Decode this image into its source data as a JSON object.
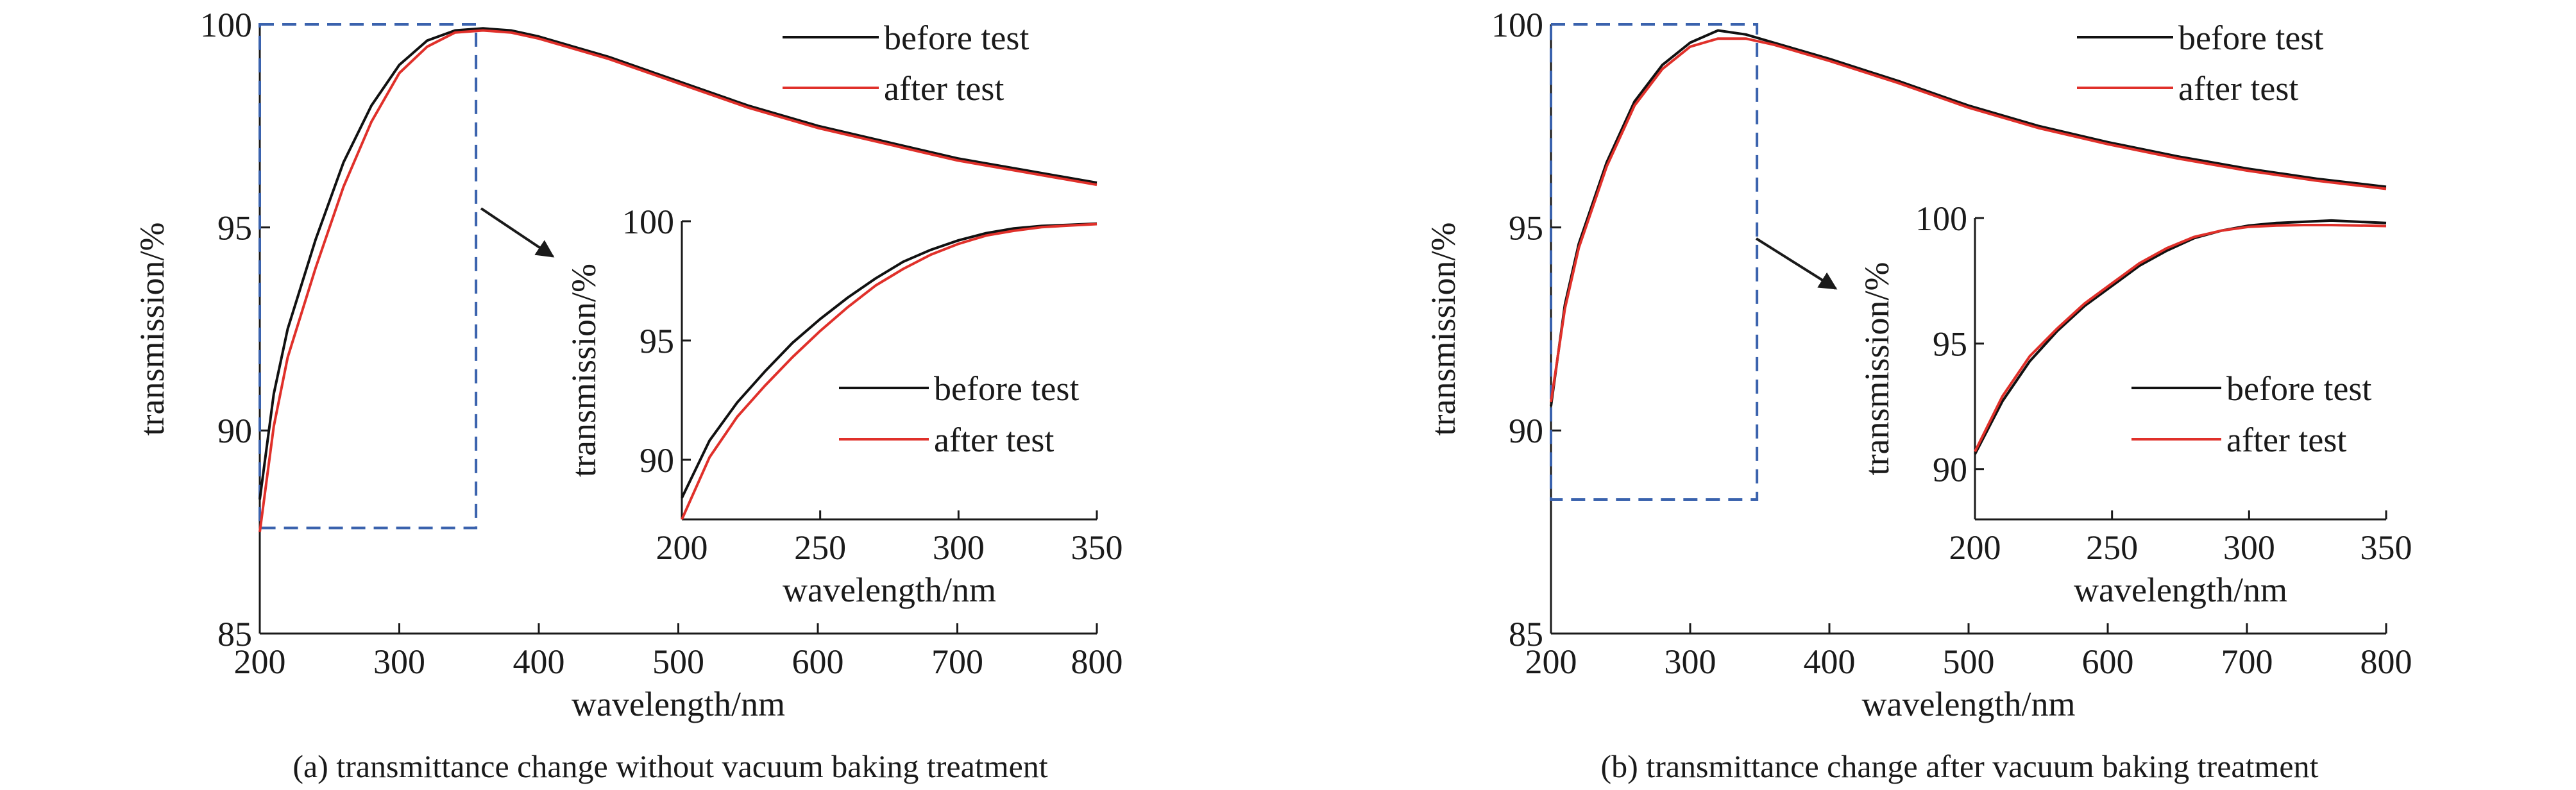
{
  "colors": {
    "before": "#111111",
    "after": "#e0302a",
    "zoom_box": "#3a62ad",
    "axis": "#1a1a1a"
  },
  "chart_data": [
    {
      "type": "line",
      "panel": "a",
      "caption": "(a) transmittance change without vacuum baking treatment",
      "main": {
        "xlabel": "wavelength/nm",
        "ylabel": "transmission/%",
        "xlim": [
          200,
          800
        ],
        "ylim": [
          85,
          100
        ],
        "xticks": [
          200,
          300,
          400,
          500,
          600,
          700,
          800
        ],
        "yticks": [
          85,
          90,
          95,
          100
        ],
        "legend": "top-right",
        "series": [
          {
            "name": "before test",
            "x": [
              200,
              210,
              220,
              240,
              260,
              280,
              300,
              320,
              340,
              360,
              380,
              400,
              450,
              500,
              550,
              600,
              650,
              700,
              750,
              800
            ],
            "y": [
              88.3,
              90.9,
              92.5,
              94.7,
              96.6,
              98.0,
              99.0,
              99.6,
              99.85,
              99.9,
              99.85,
              99.7,
              99.2,
              98.6,
              98.0,
              97.5,
              97.1,
              96.7,
              96.4,
              96.1
            ]
          },
          {
            "name": "after test",
            "x": [
              200,
              210,
              220,
              240,
              260,
              280,
              300,
              320,
              340,
              360,
              380,
              400,
              450,
              500,
              550,
              600,
              650,
              700,
              750,
              800
            ],
            "y": [
              87.5,
              90.1,
              91.8,
              94.0,
              96.0,
              97.6,
              98.8,
              99.45,
              99.8,
              99.85,
              99.8,
              99.65,
              99.15,
              98.55,
              97.95,
              97.45,
              97.05,
              96.65,
              96.35,
              96.05
            ]
          }
        ]
      },
      "zoom_box": {
        "x": [
          200,
          355
        ],
        "y": [
          87.6,
          100
        ]
      },
      "inset": {
        "xlabel": "wavelength/nm",
        "ylabel": "transmission/%",
        "xlim": [
          200,
          350
        ],
        "ylim": [
          87.5,
          100
        ],
        "xticks": [
          200,
          250,
          300,
          350
        ],
        "yticks": [
          90,
          95,
          100
        ],
        "legend": "right",
        "series": [
          {
            "name": "before test",
            "x": [
              200,
              210,
              220,
              230,
              240,
              250,
              260,
              270,
              280,
              290,
              300,
              310,
              320,
              330,
              340,
              350
            ],
            "y": [
              88.4,
              90.8,
              92.4,
              93.7,
              94.9,
              95.9,
              96.8,
              97.6,
              98.3,
              98.8,
              99.2,
              99.5,
              99.7,
              99.8,
              99.85,
              99.9
            ]
          },
          {
            "name": "after test",
            "x": [
              200,
              210,
              220,
              230,
              240,
              250,
              260,
              270,
              280,
              290,
              300,
              310,
              320,
              330,
              340,
              350
            ],
            "y": [
              87.5,
              90.1,
              91.8,
              93.1,
              94.3,
              95.4,
              96.4,
              97.3,
              98.0,
              98.6,
              99.05,
              99.4,
              99.6,
              99.75,
              99.82,
              99.88
            ]
          }
        ]
      }
    },
    {
      "type": "line",
      "panel": "b",
      "caption": "(b) transmittance change after vacuum baking treatment",
      "main": {
        "xlabel": "wavelength/nm",
        "ylabel": "transmission/%",
        "xlim": [
          200,
          800
        ],
        "ylim": [
          85,
          100
        ],
        "xticks": [
          200,
          300,
          400,
          500,
          600,
          700,
          800
        ],
        "yticks": [
          85,
          90,
          95,
          100
        ],
        "legend": "top-right",
        "series": [
          {
            "name": "before test",
            "x": [
              200,
              210,
              220,
              240,
              260,
              280,
              300,
              320,
              340,
              360,
              380,
              400,
              450,
              500,
              550,
              600,
              650,
              700,
              750,
              800
            ],
            "y": [
              90.6,
              93.1,
              94.6,
              96.6,
              98.1,
              99.0,
              99.55,
              99.85,
              99.75,
              99.55,
              99.35,
              99.15,
              98.6,
              98.0,
              97.5,
              97.1,
              96.75,
              96.45,
              96.2,
              96.0
            ]
          },
          {
            "name": "after test",
            "x": [
              200,
              210,
              220,
              240,
              260,
              280,
              300,
              320,
              340,
              360,
              380,
              400,
              450,
              500,
              550,
              600,
              650,
              700,
              750,
              800
            ],
            "y": [
              90.7,
              93.0,
              94.5,
              96.5,
              98.0,
              98.9,
              99.45,
              99.65,
              99.65,
              99.5,
              99.3,
              99.1,
              98.55,
              97.95,
              97.45,
              97.05,
              96.7,
              96.4,
              96.15,
              95.95
            ]
          }
        ]
      },
      "zoom_box": {
        "x": [
          200,
          348
        ],
        "y": [
          88.3,
          100
        ]
      },
      "inset": {
        "xlabel": "wavelength/nm",
        "ylabel": "transmission/%",
        "xlim": [
          200,
          350
        ],
        "ylim": [
          88,
          100
        ],
        "xticks": [
          200,
          250,
          300,
          350
        ],
        "yticks": [
          90,
          95,
          100
        ],
        "legend": "right",
        "series": [
          {
            "name": "before test",
            "x": [
              200,
              210,
              220,
              230,
              240,
              250,
              260,
              270,
              280,
              290,
              300,
              310,
              320,
              330,
              340,
              350
            ],
            "y": [
              90.6,
              92.7,
              94.3,
              95.5,
              96.5,
              97.3,
              98.1,
              98.7,
              99.2,
              99.5,
              99.7,
              99.8,
              99.85,
              99.9,
              99.85,
              99.8
            ]
          },
          {
            "name": "after test",
            "x": [
              200,
              210,
              220,
              230,
              240,
              250,
              260,
              270,
              280,
              290,
              300,
              310,
              320,
              330,
              340,
              350
            ],
            "y": [
              90.7,
              92.9,
              94.5,
              95.6,
              96.6,
              97.4,
              98.2,
              98.8,
              99.25,
              99.5,
              99.65,
              99.7,
              99.72,
              99.72,
              99.7,
              99.68
            ]
          }
        ]
      }
    }
  ]
}
